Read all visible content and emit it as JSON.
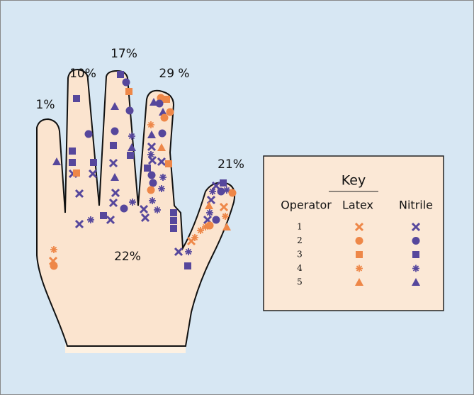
{
  "percent_labels": [
    "1%",
    "10%",
    "17%",
    "29 %",
    "21%",
    "22%"
  ],
  "key": {
    "title": "Key",
    "columns": [
      "Operator",
      "Latex",
      "Nitrile"
    ],
    "operators": [
      "1",
      "2",
      "3",
      "4",
      "5"
    ]
  }
}
